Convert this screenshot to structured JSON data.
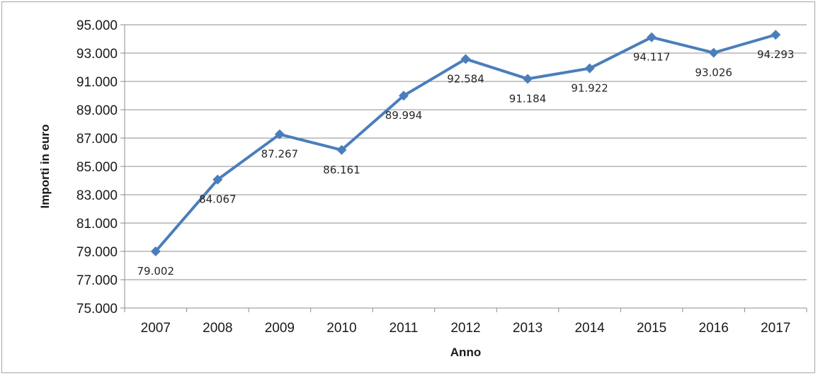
{
  "chart_data": {
    "type": "line",
    "title": "",
    "xlabel": "Anno",
    "ylabel": "Importi in euro",
    "categories": [
      "2007",
      "2008",
      "2009",
      "2010",
      "2011",
      "2012",
      "2013",
      "2014",
      "2015",
      "2016",
      "2017"
    ],
    "series": [
      {
        "values": [
          79002,
          84067,
          87267,
          86161,
          89994,
          92584,
          91184,
          91922,
          94117,
          93026,
          94293
        ],
        "labels": [
          "79.002",
          "84.067",
          "87.267",
          "86.161",
          "89.994",
          "92.584",
          "91.184",
          "91.922",
          "94.117",
          "93.026",
          "94.293"
        ],
        "color": "#4a7ebb",
        "marker": "diamond"
      }
    ],
    "ylim": [
      75000,
      95000
    ],
    "yticks": [
      "75.000",
      "77.000",
      "79.000",
      "81.000",
      "83.000",
      "85.000",
      "87.000",
      "89.000",
      "91.000",
      "93.000",
      "95.000"
    ],
    "grid": true,
    "legend": "none"
  }
}
